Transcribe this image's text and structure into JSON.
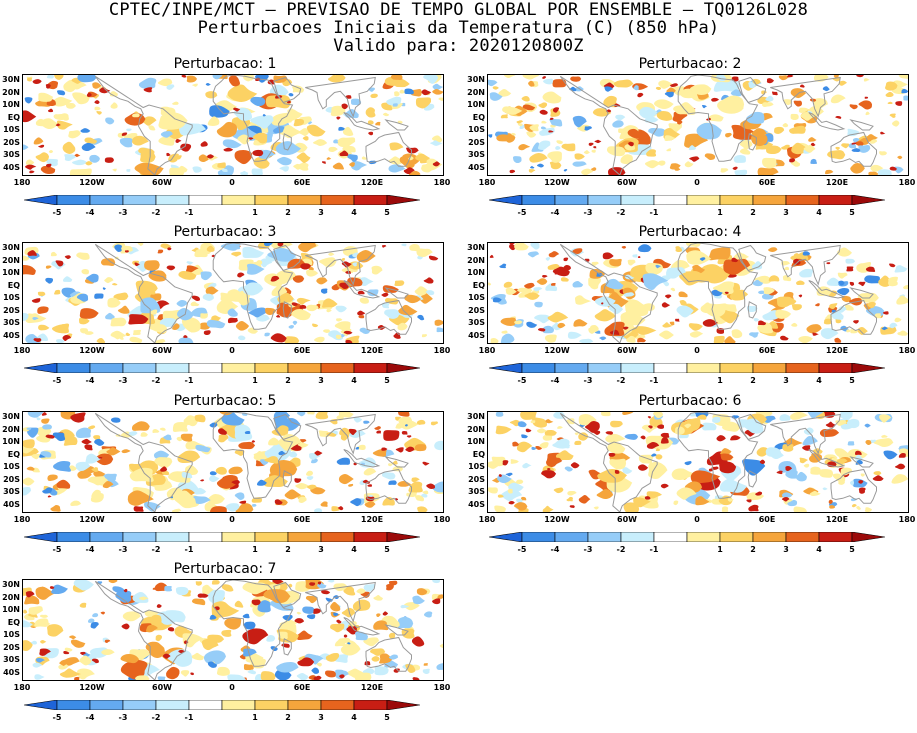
{
  "header": {
    "line1": "CPTEC/INPE/MCT – PREVISAO DE TEMPO GLOBAL POR ENSEMBLE – TQ0126L028",
    "line2": "Perturbacoes Iniciais da Temperatura (C) (850 hPa)",
    "line3": "Valido para: 2020120800Z"
  },
  "lat_labels": [
    "30N",
    "20N",
    "10N",
    "EQ",
    "10S",
    "20S",
    "30S",
    "40S"
  ],
  "lon_labels": [
    "180",
    "120W",
    "60W",
    "0",
    "60E",
    "120E",
    "180"
  ],
  "colorbar": {
    "labels": [
      "-5",
      "-4",
      "-3",
      "-2",
      "-1",
      "1",
      "2",
      "3",
      "4",
      "5"
    ],
    "colors": [
      "#1e64d8",
      "#3c8ce6",
      "#64aaf0",
      "#96cdf8",
      "#c8eefc",
      "#ffffff",
      "#fff0a0",
      "#fcd264",
      "#f5a53c",
      "#e6641e",
      "#c81e14",
      "#9b0a0a"
    ]
  },
  "panels": [
    {
      "title": "Perturbacao: 1"
    },
    {
      "title": "Perturbacao: 2"
    },
    {
      "title": "Perturbacao: 3"
    },
    {
      "title": "Perturbacao: 4"
    },
    {
      "title": "Perturbacao: 5"
    },
    {
      "title": "Perturbacao: 6"
    },
    {
      "title": "Perturbacao: 7"
    }
  ]
}
